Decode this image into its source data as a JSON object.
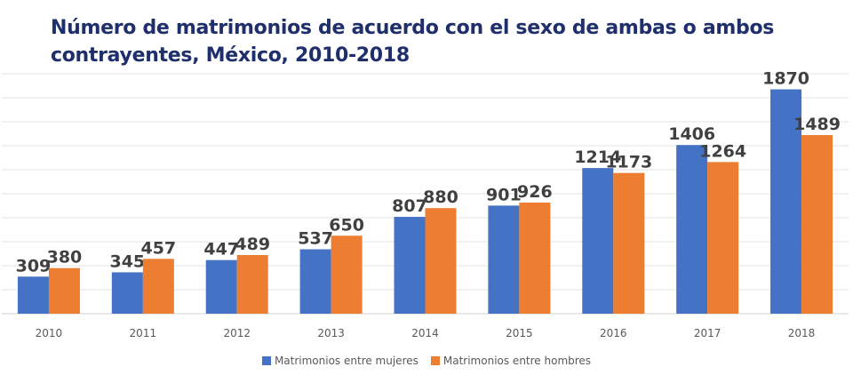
{
  "chart_data": {
    "type": "bar",
    "title": "Número de matrimonios de acuerdo con el sexo de ambas o ambos contrayentes, México, 2010-2018",
    "title_lines": [
      "Número de matrimonios de acuerdo con el sexo de ambas o ambos",
      "contrayentes, México, 2010-2018"
    ],
    "categories": [
      "2010",
      "2011",
      "2012",
      "2013",
      "2014",
      "2015",
      "2016",
      "2017",
      "2018"
    ],
    "series": [
      {
        "name": "Matrimonios entre mujeres",
        "color": "#4472c4",
        "values": [
          309,
          345,
          447,
          537,
          807,
          901,
          1214,
          1406,
          1870
        ]
      },
      {
        "name": "Matrimonios entre hombres",
        "color": "#ed7d31",
        "values": [
          380,
          457,
          489,
          650,
          880,
          926,
          1173,
          1264,
          1489
        ]
      }
    ],
    "xlabel": "",
    "ylabel": "",
    "ylim": [
      0,
      2000
    ],
    "grid_step": 200,
    "grid": true,
    "legend_position": "bottom"
  }
}
